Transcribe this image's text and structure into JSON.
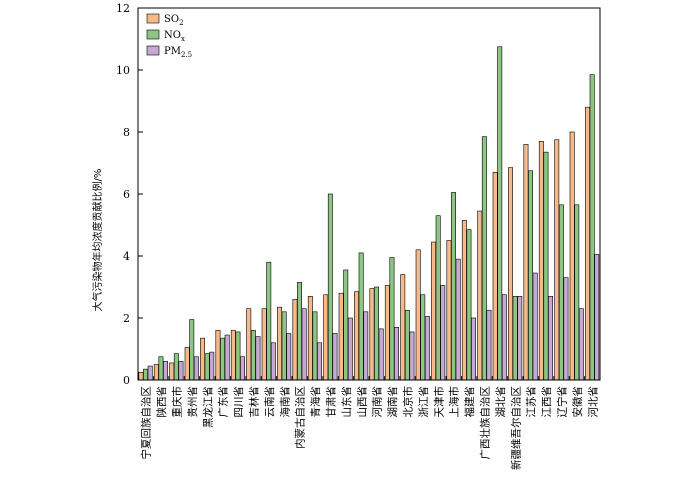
{
  "chart_data": {
    "type": "bar",
    "ylabel": "大气污染物年均浓度贡献比例/%",
    "ylim": [
      0,
      12
    ],
    "yticks": [
      0,
      2,
      4,
      6,
      8,
      10,
      12
    ],
    "grid": false,
    "legend_position": "top-left",
    "categories": [
      "宁夏回族自治区",
      "陕西省",
      "重庆市",
      "贵州省",
      "黑龙江省",
      "广东省",
      "四川省",
      "吉林省",
      "云南省",
      "海南省",
      "内蒙古自治区",
      "青海省",
      "甘肃省",
      "山东省",
      "山西省",
      "河南省",
      "湖南省",
      "北京市",
      "浙江省",
      "天津市",
      "上海市",
      "福建省",
      "广西壮族自治区",
      "湖北省",
      "新疆维吾尔自治区",
      "江苏省",
      "江西省",
      "辽宁省",
      "安徽省",
      "河北省"
    ],
    "series": [
      {
        "name": "SO2",
        "label_main": "SO",
        "label_sub": "2",
        "color": "#f5b98a",
        "values": [
          0.25,
          0.5,
          0.55,
          1.05,
          1.35,
          1.6,
          1.6,
          2.3,
          2.3,
          2.35,
          2.6,
          2.7,
          2.75,
          2.8,
          2.85,
          2.95,
          3.05,
          3.4,
          4.2,
          4.45,
          4.5,
          5.15,
          5.45,
          6.7,
          6.85,
          7.6,
          7.7,
          7.75,
          8.0,
          8.8
        ]
      },
      {
        "name": "NOx",
        "label_main": "NO",
        "label_sub": "x",
        "color": "#8dc585",
        "values": [
          0.35,
          0.75,
          0.85,
          1.95,
          0.85,
          1.35,
          1.55,
          1.6,
          3.8,
          2.2,
          3.15,
          2.2,
          6.0,
          3.55,
          4.1,
          3.0,
          3.95,
          2.25,
          2.75,
          5.3,
          6.05,
          4.85,
          7.85,
          10.75,
          2.7,
          6.75,
          7.35,
          5.65,
          5.65,
          9.85
        ]
      },
      {
        "name": "PM2.5",
        "label_main": "PM",
        "label_sub": "2.5",
        "color": "#c6a9d3",
        "values": [
          0.45,
          0.6,
          0.6,
          0.75,
          0.9,
          1.45,
          0.75,
          1.4,
          1.2,
          1.5,
          2.3,
          1.2,
          1.5,
          2.0,
          2.2,
          1.65,
          1.7,
          1.55,
          2.05,
          3.05,
          3.9,
          2.0,
          2.25,
          2.75,
          2.7,
          3.45,
          2.7,
          3.3,
          2.3,
          4.05
        ]
      }
    ]
  }
}
